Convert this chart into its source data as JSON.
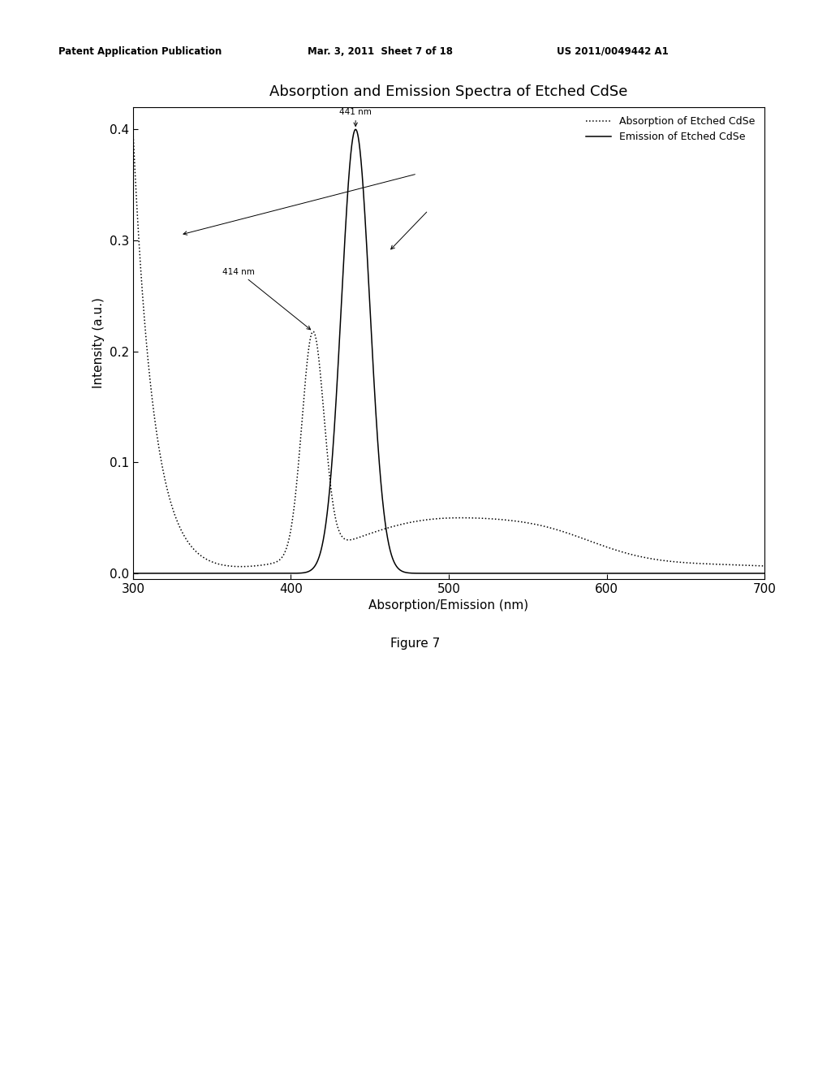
{
  "title": "Absorption and Emission Spectra of Etched CdSe",
  "xlabel": "Absorption/Emission (nm)",
  "ylabel": "Intensity (a.u.)",
  "xlim": [
    300,
    700
  ],
  "ylim": [
    -0.005,
    0.42
  ],
  "yticks": [
    0.0,
    0.1,
    0.2,
    0.3,
    0.4
  ],
  "xticks": [
    300,
    400,
    500,
    600,
    700
  ],
  "legend_absorption": "Absorption of Etched CdSe",
  "legend_emission": "Emission of Etched CdSe",
  "annotation_441": "441 nm",
  "annotation_414": "414 nm",
  "header_left": "Patent Application Publication",
  "header_mid": "Mar. 3, 2011  Sheet 7 of 18",
  "header_right": "US 2011/0049442 A1",
  "figure_label": "Figure 7",
  "background_color": "#ffffff",
  "line_color": "#000000",
  "title_fontsize": 13,
  "tick_fontsize": 11,
  "label_fontsize": 11,
  "legend_fontsize": 9,
  "annot_fontsize": 7.5,
  "header_fontsize": 8.5
}
